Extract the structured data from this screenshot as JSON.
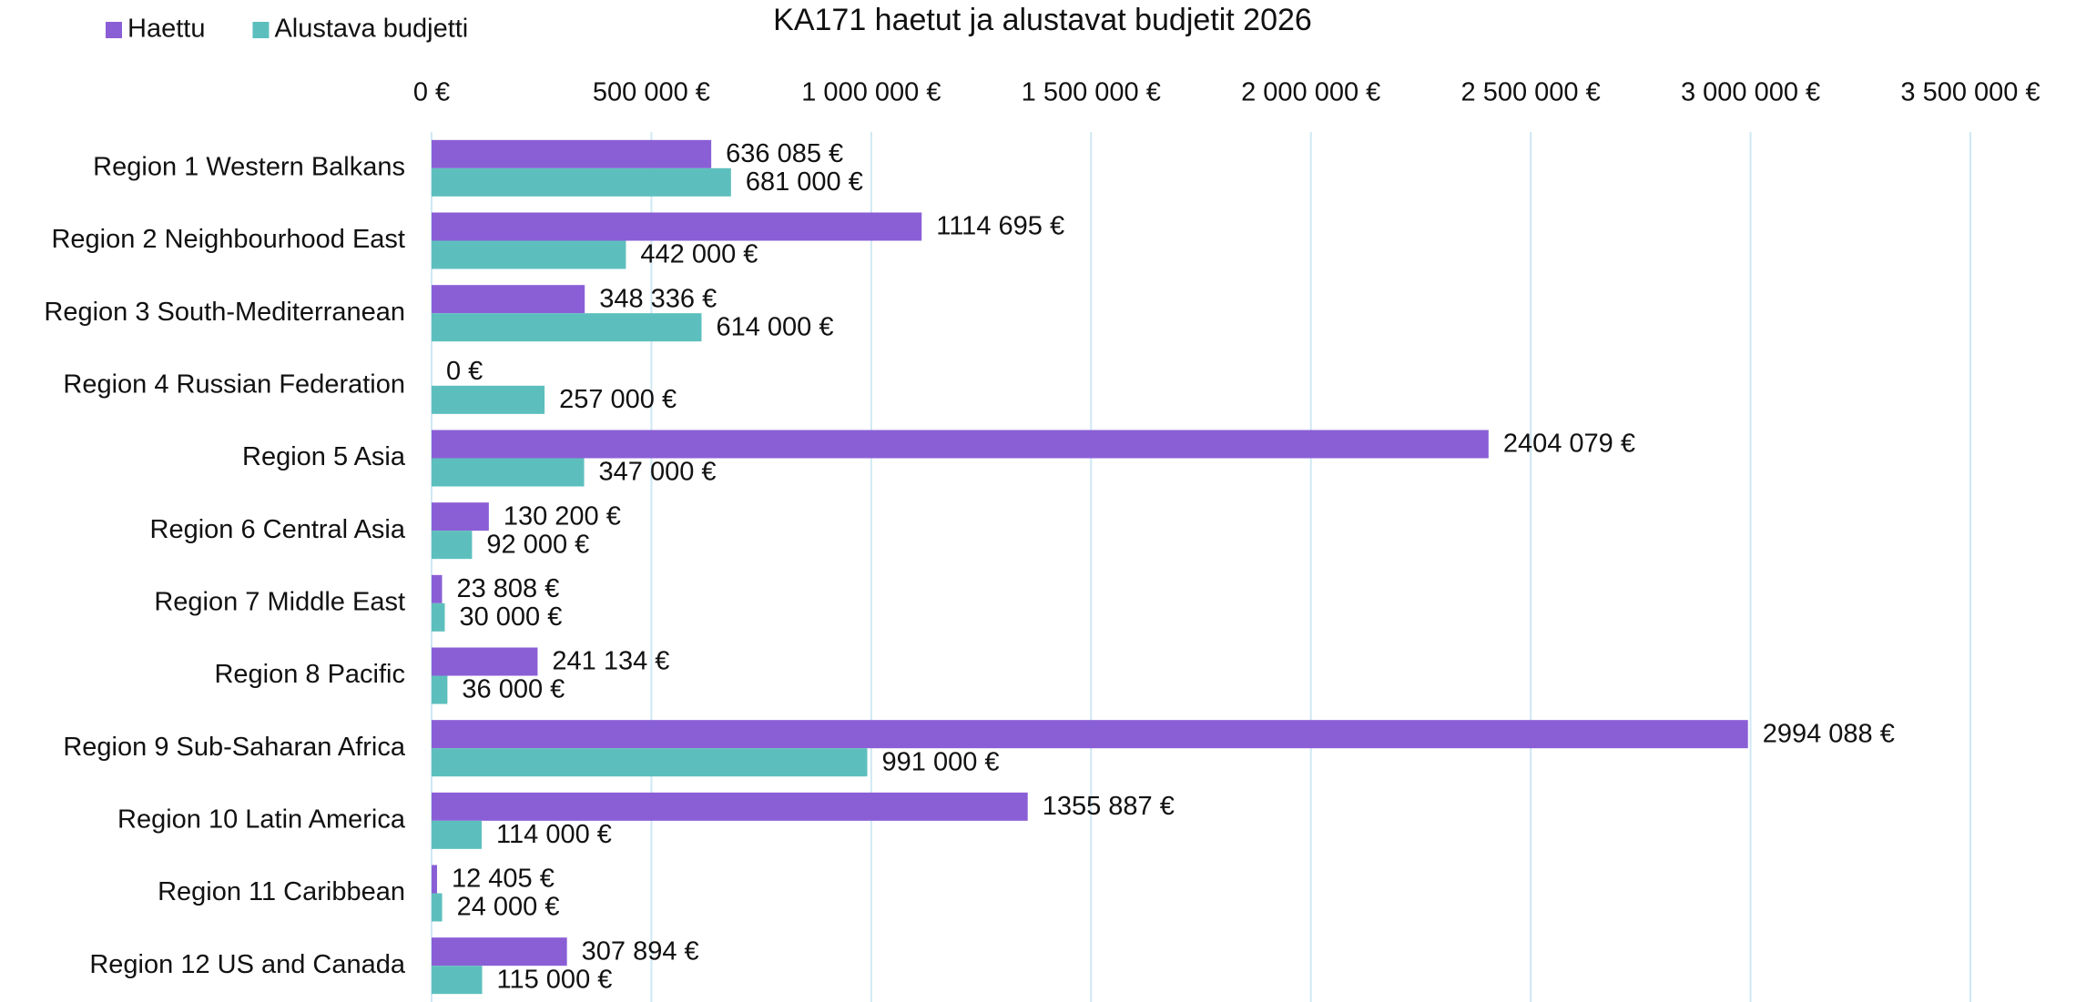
{
  "chart_data": {
    "type": "bar",
    "orientation": "horizontal",
    "title": "KA171 haetut ja alustavat budjetit 2026",
    "categories": [
      "Region 1 Western Balkans",
      "Region 2 Neighbourhood East",
      "Region 3 South-Mediterranean",
      "Region 4 Russian Federation",
      "Region 5 Asia",
      "Region 6 Central Asia",
      "Region 7 Middle East",
      "Region 8 Pacific",
      "Region 9 Sub-Saharan Africa",
      "Region 10 Latin America",
      "Region 11 Caribbean",
      "Region 12 US and Canada"
    ],
    "series": [
      {
        "name": "Haettu",
        "color": "#8a5fd6",
        "values": [
          636085,
          1114695,
          348336,
          0,
          2404079,
          130200,
          23808,
          241134,
          2994088,
          1355887,
          12405,
          307894
        ],
        "value_labels": [
          "636 085 €",
          "1114 695 €",
          "348 336 €",
          "0 €",
          "2404 079 €",
          "130 200 €",
          "23 808 €",
          "241 134 €",
          "2994 088 €",
          "1355 887 €",
          "12 405 €",
          "307 894 €"
        ]
      },
      {
        "name": "Alustava budjetti",
        "color": "#5dbfbd",
        "values": [
          681000,
          442000,
          614000,
          257000,
          347000,
          92000,
          30000,
          36000,
          991000,
          114000,
          24000,
          115000
        ],
        "value_labels": [
          "681 000 €",
          "442 000 €",
          "614 000 €",
          "257 000 €",
          "347 000 €",
          "92 000 €",
          "30 000 €",
          "36 000 €",
          "991 000 €",
          "114 000 €",
          "24 000 €",
          "115 000 €"
        ]
      }
    ],
    "xlim": [
      0,
      3500000
    ],
    "xticks": [
      {
        "value": 0,
        "label": "0 €"
      },
      {
        "value": 500000,
        "label": "500 000 €"
      },
      {
        "value": 1000000,
        "label": "1 000 000 €"
      },
      {
        "value": 1500000,
        "label": "1 500 000 €"
      },
      {
        "value": 2000000,
        "label": "2 000 000 €"
      },
      {
        "value": 2500000,
        "label": "2 500 000 €"
      },
      {
        "value": 3000000,
        "label": "3 000 000 €"
      },
      {
        "value": 3500000,
        "label": "3 500 000 €"
      }
    ],
    "grid": true,
    "legend": "top-left"
  }
}
